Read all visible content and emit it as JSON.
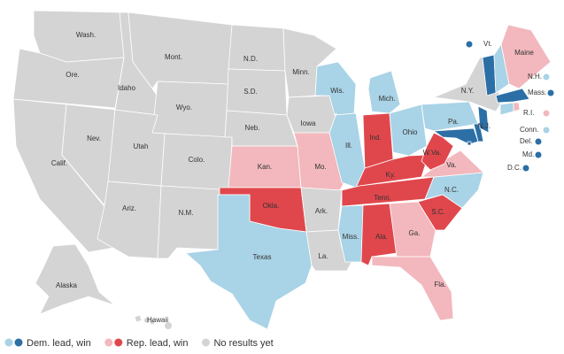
{
  "map": {
    "states": [
      {
        "label": "Wash.",
        "color": "#d4d4d4"
      },
      {
        "label": "Ore.",
        "color": "#d4d4d4"
      },
      {
        "label": "Calif.",
        "color": "#d4d4d4"
      },
      {
        "label": "Nev.",
        "color": "#d4d4d4"
      },
      {
        "label": "Idaho",
        "color": "#d4d4d4"
      },
      {
        "label": "Mont.",
        "color": "#d4d4d4"
      },
      {
        "label": "Wyo.",
        "color": "#d4d4d4"
      },
      {
        "label": "Utah",
        "color": "#d4d4d4"
      },
      {
        "label": "Ariz.",
        "color": "#d4d4d4"
      },
      {
        "label": "Colo.",
        "color": "#d4d4d4"
      },
      {
        "label": "N.M.",
        "color": "#d4d4d4"
      },
      {
        "label": "N.D.",
        "color": "#d4d4d4"
      },
      {
        "label": "S.D.",
        "color": "#d4d4d4"
      },
      {
        "label": "Neb.",
        "color": "#d4d4d4"
      },
      {
        "label": "Kan.",
        "color": "#f2b8bd"
      },
      {
        "label": "Okla.",
        "color": "#e0474c"
      },
      {
        "label": "Texas",
        "color": "#a9d3e6"
      },
      {
        "label": "Minn.",
        "color": "#d4d4d4"
      },
      {
        "label": "Iowa",
        "color": "#d4d4d4"
      },
      {
        "label": "Mo.",
        "color": "#f2b8bd"
      },
      {
        "label": "Ark.",
        "color": "#d4d4d4"
      },
      {
        "label": "La.",
        "color": "#d4d4d4"
      },
      {
        "label": "Wis.",
        "color": "#a9d3e6"
      },
      {
        "label": "Ill.",
        "color": "#a9d3e6"
      },
      {
        "label": "Mich.",
        "color": "#a9d3e6"
      },
      {
        "label": "Ind.",
        "color": "#e0474c"
      },
      {
        "label": "Ohio",
        "color": "#a9d3e6"
      },
      {
        "label": "Ky.",
        "color": "#e0474c"
      },
      {
        "label": "Tenn.",
        "color": "#e0474c"
      },
      {
        "label": "Miss.",
        "color": "#a9d3e6"
      },
      {
        "label": "Ala.",
        "color": "#e0474c"
      },
      {
        "label": "Ga.",
        "color": "#f2b8bd"
      },
      {
        "label": "Fla.",
        "color": "#f2b8bd"
      },
      {
        "label": "S.C.",
        "color": "#e0474c"
      },
      {
        "label": "N.C.",
        "color": "#a9d3e6"
      },
      {
        "label": "Va.",
        "color": "#f2b8bd"
      },
      {
        "label": "W.Va.",
        "color": "#e0474c"
      },
      {
        "label": "Pa.",
        "color": "#a9d3e6"
      },
      {
        "label": "N.Y.",
        "color": "#d4d4d4"
      },
      {
        "label": "Md.",
        "color": "#2b6fa6"
      },
      {
        "label": "Del.",
        "color": "#2b6fa6"
      },
      {
        "label": "N.J.",
        "color": "#2b6fa6"
      },
      {
        "label": "Conn.",
        "color": "#a9d3e6"
      },
      {
        "label": "R.I.",
        "color": "#f2b8bd"
      },
      {
        "label": "Mass.",
        "color": "#2b6fa6"
      },
      {
        "label": "Vt.",
        "color": "#2b6fa6"
      },
      {
        "label": "N.H.",
        "color": "#a9d3e6"
      },
      {
        "label": "Maine",
        "color": "#f2b8bd"
      },
      {
        "label": "Alaska",
        "color": "#d4d4d4"
      },
      {
        "label": "Hawaii",
        "color": "#d4d4d4"
      },
      {
        "label": "D.C.",
        "color": "#2b6fa6"
      }
    ],
    "legend": [
      {
        "label": "Dem. lead, win",
        "colors": [
          "#a9d3e6",
          "#2b6fa6"
        ]
      },
      {
        "label": "Rep. lead, win",
        "colors": [
          "#f2b8bd",
          "#e0474c"
        ]
      },
      {
        "label": "No results yet",
        "colors": [
          "#d4d4d4"
        ]
      }
    ]
  }
}
